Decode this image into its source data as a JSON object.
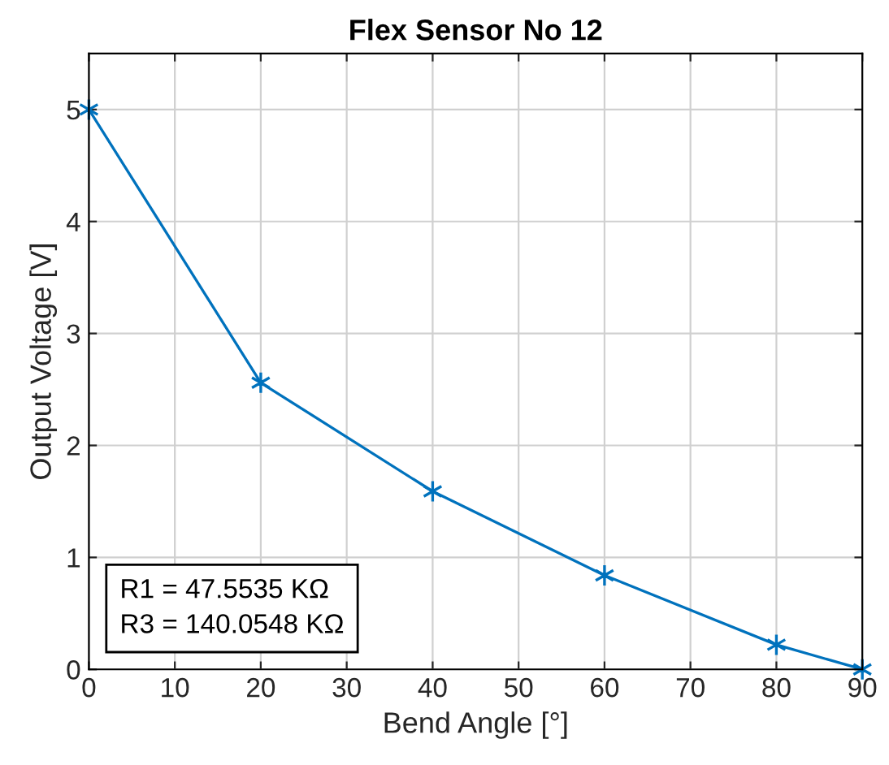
{
  "chart_data": {
    "type": "line",
    "title": "Flex Sensor No 12",
    "xlabel": "Bend Angle [°]",
    "ylabel": "Output Voltage [V]",
    "x": [
      0,
      20,
      40,
      60,
      80,
      90
    ],
    "series": [
      {
        "color": "#0072bd",
        "values": [
          5,
          2.56,
          1.59,
          0.84,
          0.22,
          0
        ]
      }
    ],
    "xlim": [
      0,
      90
    ],
    "xticks": [
      0,
      10,
      20,
      30,
      40,
      50,
      60,
      70,
      80,
      90
    ],
    "ylim": [
      0,
      5.5
    ],
    "yticks": [
      0,
      1,
      2,
      3,
      4,
      5
    ],
    "grid": true,
    "marker": "cross",
    "line_style": "solid",
    "annotations": [
      "R1 = 47.5535 KΩ",
      "R3 = 140.0548 KΩ"
    ]
  }
}
